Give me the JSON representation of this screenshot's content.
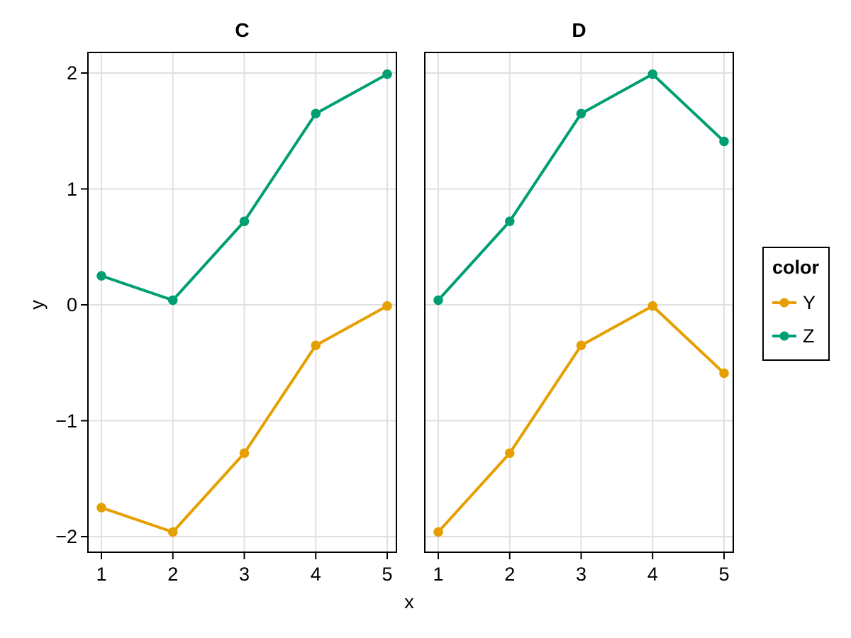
{
  "chart_data": {
    "type": "line",
    "facets": [
      {
        "title": "C",
        "series": [
          {
            "name": "Y",
            "x": [
              1,
              2,
              3,
              4,
              5
            ],
            "y": [
              -1.75,
              -1.96,
              -1.28,
              -0.35,
              -0.01
            ]
          },
          {
            "name": "Z",
            "x": [
              1,
              2,
              3,
              4,
              5
            ],
            "y": [
              0.25,
              0.04,
              0.72,
              1.65,
              1.99
            ]
          }
        ]
      },
      {
        "title": "D",
        "series": [
          {
            "name": "Y",
            "x": [
              1,
              2,
              3,
              4,
              5
            ],
            "y": [
              -1.96,
              -1.28,
              -0.35,
              -0.01,
              -0.59
            ]
          },
          {
            "name": "Z",
            "x": [
              1,
              2,
              3,
              4,
              5
            ],
            "y": [
              0.04,
              0.72,
              1.65,
              1.99,
              1.41
            ]
          }
        ]
      }
    ],
    "xlabel": "x",
    "ylabel": "y",
    "x_ticks": [
      1,
      2,
      3,
      4,
      5
    ],
    "x_tick_labels": [
      "1",
      "2",
      "3",
      "4",
      "5"
    ],
    "y_ticks": [
      2,
      1,
      0,
      -1,
      -2
    ],
    "y_tick_labels": [
      "2",
      "1",
      "0",
      "−1",
      "−2"
    ],
    "xlim": [
      0.8,
      5.14
    ],
    "ylim": [
      -2.14,
      2.18
    ],
    "grid": true,
    "marker": "circle",
    "legend": {
      "title": "color",
      "position": "right",
      "entries": [
        {
          "label": "Y",
          "color": "#E69F00"
        },
        {
          "label": "Z",
          "color": "#009E73"
        }
      ]
    },
    "series_colors": {
      "Y": "#E69F00",
      "Z": "#009E73"
    },
    "grid_color": "#E0E0E0",
    "axis_color": "#000000",
    "text_color": "#000000"
  }
}
